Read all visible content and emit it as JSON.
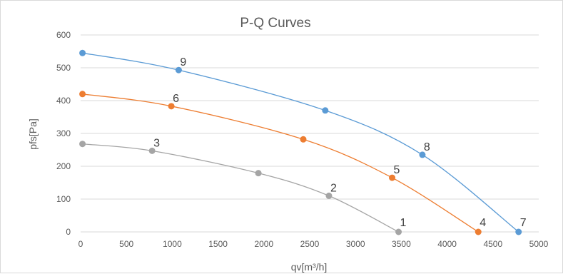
{
  "chart_data": {
    "type": "line",
    "title": "P-Q Curves",
    "xlabel": "qv[m³/h]",
    "ylabel": "pfs[Pa]",
    "xlim": [
      0,
      5000
    ],
    "ylim": [
      0,
      600
    ],
    "x_ticks": [
      0,
      500,
      1000,
      1500,
      2000,
      2500,
      3000,
      3500,
      4000,
      4500,
      5000
    ],
    "y_ticks": [
      0,
      100,
      200,
      300,
      400,
      500,
      600
    ],
    "grid": "horizontal",
    "series": [
      {
        "color": "#5b9bd5",
        "points": [
          {
            "x": 20,
            "y": 545
          },
          {
            "x": 1070,
            "y": 493,
            "label": "9"
          },
          {
            "x": 2670,
            "y": 370
          },
          {
            "x": 3730,
            "y": 235,
            "label": "8"
          },
          {
            "x": 4780,
            "y": 0,
            "label": "7"
          }
        ]
      },
      {
        "color": "#ed7d31",
        "points": [
          {
            "x": 20,
            "y": 420
          },
          {
            "x": 990,
            "y": 383,
            "label": "6"
          },
          {
            "x": 2430,
            "y": 282
          },
          {
            "x": 3400,
            "y": 165,
            "label": "5"
          },
          {
            "x": 4340,
            "y": 0,
            "label": "4"
          }
        ]
      },
      {
        "color": "#a5a5a5",
        "points": [
          {
            "x": 20,
            "y": 268
          },
          {
            "x": 780,
            "y": 247,
            "label": "3"
          },
          {
            "x": 1940,
            "y": 179
          },
          {
            "x": 2710,
            "y": 110,
            "label": "2"
          },
          {
            "x": 3470,
            "y": 0,
            "label": "1"
          }
        ]
      }
    ]
  }
}
